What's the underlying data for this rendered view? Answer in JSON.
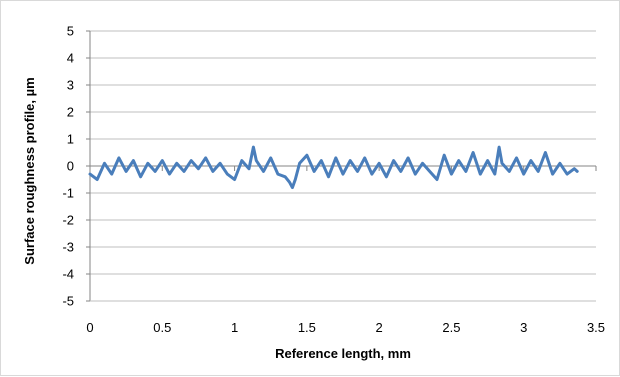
{
  "chart_data": {
    "type": "line",
    "title": "",
    "xlabel": "Reference length, mm",
    "ylabel": "Surface roughness profile, µm",
    "xlim": [
      0,
      3.5
    ],
    "ylim": [
      -5,
      5
    ],
    "x_ticks": [
      "0",
      "0.5",
      "1",
      "1.5",
      "2",
      "2.5",
      "3",
      "3.5"
    ],
    "y_ticks": [
      "5",
      "4",
      "3",
      "2",
      "1",
      "0",
      "-1",
      "-2",
      "-3",
      "-4",
      "-5"
    ],
    "grid": "horizontal",
    "legend": "none",
    "series": [
      {
        "color": "#4a7ebb",
        "x": [
          0.0,
          0.05,
          0.1,
          0.15,
          0.2,
          0.25,
          0.3,
          0.35,
          0.4,
          0.45,
          0.5,
          0.55,
          0.6,
          0.65,
          0.7,
          0.75,
          0.8,
          0.85,
          0.9,
          0.95,
          1.0,
          1.05,
          1.1,
          1.13,
          1.15,
          1.2,
          1.25,
          1.3,
          1.35,
          1.38,
          1.4,
          1.42,
          1.45,
          1.5,
          1.55,
          1.6,
          1.65,
          1.7,
          1.75,
          1.8,
          1.85,
          1.9,
          1.95,
          2.0,
          2.05,
          2.1,
          2.15,
          2.2,
          2.25,
          2.3,
          2.35,
          2.4,
          2.45,
          2.5,
          2.55,
          2.6,
          2.65,
          2.7,
          2.75,
          2.8,
          2.83,
          2.85,
          2.9,
          2.95,
          3.0,
          3.05,
          3.1,
          3.15,
          3.2,
          3.25,
          3.3,
          3.35,
          3.37
        ],
        "y": [
          -0.3,
          -0.5,
          0.1,
          -0.3,
          0.3,
          -0.2,
          0.2,
          -0.4,
          0.1,
          -0.2,
          0.2,
          -0.3,
          0.1,
          -0.2,
          0.2,
          -0.1,
          0.3,
          -0.2,
          0.1,
          -0.3,
          -0.5,
          0.2,
          -0.1,
          0.7,
          0.2,
          -0.2,
          0.3,
          -0.3,
          -0.4,
          -0.6,
          -0.8,
          -0.5,
          0.1,
          0.4,
          -0.2,
          0.2,
          -0.4,
          0.3,
          -0.3,
          0.2,
          -0.2,
          0.3,
          -0.3,
          0.1,
          -0.4,
          0.2,
          -0.2,
          0.3,
          -0.3,
          0.1,
          -0.2,
          -0.5,
          0.4,
          -0.3,
          0.2,
          -0.2,
          0.5,
          -0.3,
          0.2,
          -0.3,
          0.7,
          0.1,
          -0.2,
          0.3,
          -0.3,
          0.2,
          -0.2,
          0.5,
          -0.3,
          0.1,
          -0.3,
          -0.1,
          -0.2
        ]
      }
    ]
  }
}
